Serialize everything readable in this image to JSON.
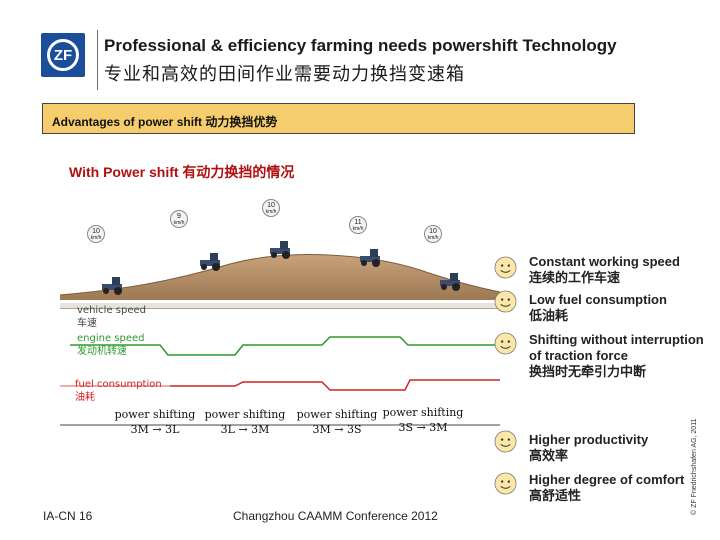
{
  "header": {
    "logo_text": "ZF",
    "title_en": "Professional & efficiency farming needs powershift Technology",
    "title_cn": "专业和高效的田间作业需要动力换挡变速箱"
  },
  "banner": {
    "text": "Advantages of power shift  动力换挡优势"
  },
  "section_title": "With Power shift 有动力换挡的情况",
  "speeds": [
    {
      "value": "10",
      "unit": "km/h"
    },
    {
      "value": "9",
      "unit": "km/h"
    },
    {
      "value": "10",
      "unit": "km/h"
    },
    {
      "value": "11",
      "unit": "km/h"
    },
    {
      "value": "10",
      "unit": "km/h"
    }
  ],
  "signal_labels": {
    "vehicle_speed_en": "vehicle speed",
    "vehicle_speed_cn": "车速",
    "engine_speed_en": "engine speed",
    "engine_speed_cn": "发动机转速",
    "fuel_en": "fuel consumption",
    "fuel_cn": "油耗"
  },
  "shifts": [
    {
      "label": "power shifting",
      "gears": "3M → 3L"
    },
    {
      "label": "power shifting",
      "gears": "3L → 3M"
    },
    {
      "label": "power shifting",
      "gears": "3M → 3S"
    },
    {
      "label": "power shifting",
      "gears": "3S → 3M"
    }
  ],
  "advantages": [
    {
      "en": "Constant working speed",
      "cn": "连续的工作车速",
      "icon": "smiley-icon"
    },
    {
      "en": "Low fuel consumption",
      "cn": " 低油耗",
      "icon": "smiley-icon"
    },
    {
      "en": "Shifting without interruption",
      "en2": " of traction force",
      "cn": "换挡时无牵引力中断",
      "icon": "smiley-icon"
    },
    {
      "en": "Higher productivity",
      "cn": " 高效率",
      "icon": "smiley-icon"
    },
    {
      "en": "Higher degree of comfort",
      "cn": " 高舒适性",
      "icon": "smiley-icon"
    }
  ],
  "footer": {
    "left": "IA-CN  16",
    "center": "Changzhou CAAMM Conference 2012",
    "copyright": "© ZF Friedrichshafen AG, 2011"
  },
  "colors": {
    "logo_blue": "#1a4e9a",
    "banner_yellow": "#f6cd6c",
    "vehicle_speed": "#555555",
    "engine_speed": "#2c9a2c",
    "fuel": "#d42020",
    "accent_red": "#b01010"
  }
}
